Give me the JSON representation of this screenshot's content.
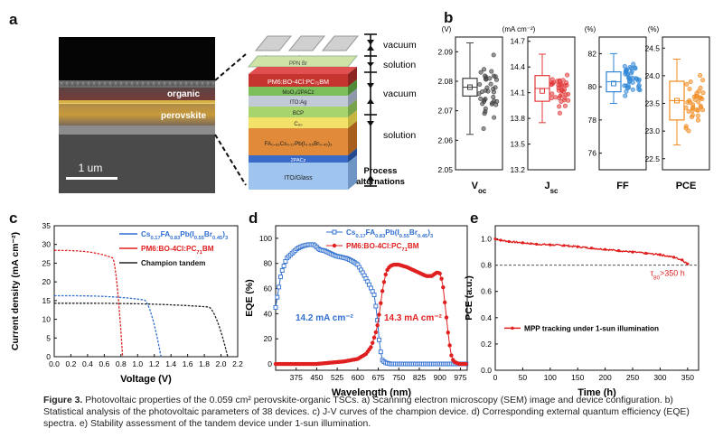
{
  "panels": {
    "a": {
      "letter": "a",
      "sem": {
        "labels": [
          "organic",
          "perovskite"
        ],
        "scale_bar": "1 um"
      },
      "stack": {
        "layers": [
          "Ag",
          "PPN Br",
          "PM6:BO-4Cl:PC₇₁BM",
          "MoO₃/2PACz",
          "ITO:Ag",
          "BCP",
          "C₆₀",
          "FA₀.₈₃Cs₀.₁₇Pb(I₀.₅₅Br₀.₄₅)₃",
          "2PACz",
          "ITO/Glass"
        ],
        "process": [
          "vacuum",
          "solution",
          "vacuum",
          "solution"
        ],
        "process_title": [
          "Process",
          "alternations"
        ]
      }
    },
    "b": {
      "letter": "b",
      "subplots": [
        {
          "label": "Voc",
          "label_main": "V",
          "label_sub": "oc",
          "unit": "(V)",
          "color": "#404040",
          "ticks": [
            "2.09",
            "2.08",
            "2.07",
            "2.06",
            "2.05"
          ],
          "ylim": [
            2.05,
            2.095
          ],
          "box": {
            "q1": 2.075,
            "median": 2.078,
            "q3": 2.081,
            "mean": 2.078,
            "min": 2.062,
            "max": 2.093
          }
        },
        {
          "label": "Jsc",
          "label_main": "J",
          "label_sub": "sc",
          "unit": "(mA cm⁻²)",
          "color": "#e23a3a",
          "ticks": [
            "14.7",
            "14.4",
            "14.1",
            "13.8",
            "13.5",
            "13.2"
          ],
          "ylim": [
            13.2,
            14.75
          ],
          "box": {
            "q1": 14.0,
            "median": 14.15,
            "q3": 14.3,
            "mean": 14.12,
            "min": 13.75,
            "max": 14.55
          }
        },
        {
          "label": "FF",
          "label_main": "FF",
          "label_sub": "",
          "unit": "(%)",
          "color": "#2f86d6",
          "ticks": [
            "82",
            "80",
            "78",
            "76"
          ],
          "ylim": [
            75,
            83
          ],
          "box": {
            "q1": 79.7,
            "median": 80.3,
            "q3": 80.9,
            "mean": 80.2,
            "min": 79.0,
            "max": 82.0
          }
        },
        {
          "label": "PCE",
          "label_main": "PCE",
          "label_sub": "",
          "unit": "(%)",
          "color": "#f18a1d",
          "ticks": [
            "24.5",
            "24.0",
            "23.5",
            "23.0",
            "22.5"
          ],
          "ylim": [
            22.3,
            24.7
          ],
          "box": {
            "q1": 23.2,
            "median": 23.55,
            "q3": 23.9,
            "mean": 23.55,
            "min": 22.75,
            "max": 24.3
          }
        }
      ]
    },
    "c": {
      "letter": "c"
    },
    "d": {
      "letter": "d",
      "annot_blue": "14.2 mA cm⁻²",
      "annot_red": "14.3 mA cm⁻²"
    },
    "e": {
      "letter": "e",
      "annot": "τ₈₀>350 h"
    }
  },
  "chart_data": [
    {
      "type": "line",
      "title": "J-V curves of the champion device",
      "xlabel": "Voltage (V)",
      "ylabel": "Current density (mA cm⁻²)",
      "xlim": [
        0,
        2.2
      ],
      "ylim": [
        0,
        35
      ],
      "xticks": [
        0,
        0.2,
        0.4,
        0.6,
        0.8,
        1.0,
        1.2,
        1.4,
        1.6,
        1.8,
        2.0,
        2.2
      ],
      "xtick_labels": [
        "0.0",
        "0.2",
        "0.4",
        "0.6",
        "0.8",
        "1.0",
        "1.2",
        "1.4",
        "1.6",
        "1.8",
        "2.0",
        "2.2"
      ],
      "yticks": [
        0,
        5,
        10,
        15,
        20,
        25,
        30,
        35
      ],
      "legend": {
        "position": "top-right",
        "entries": [
          {
            "main": "Cs",
            "parts": [
              [
                "Cs",
                ""
              ],
              [
                "0.17",
                ""
              ],
              [
                "FA",
                ""
              ],
              [
                "0.83",
                ""
              ],
              [
                "Pb(I",
                ""
              ],
              [
                "0.55",
                ""
              ],
              [
                "Br",
                ""
              ],
              [
                "0.45",
                ""
              ],
              [
                ")",
                ""
              ],
              [
                "3",
                ""
              ]
            ]
          }
        ]
      },
      "legend_labels": [
        "Cs0.17FA0.83Pb(I0.55Br0.45)3",
        "PM6:BO-4Cl:PC71BM",
        "Champion tandem"
      ],
      "series": [
        {
          "name": "Cs0.17FA0.83Pb(I0.55Br0.45)3",
          "color": "#2f6fd0",
          "jsc": 16.3,
          "voc": 1.28,
          "vk": 1.08,
          "k": 0.055
        },
        {
          "name": "PM6:BO-4Cl:PC71BM",
          "color": "#e02020",
          "jsc": 28.4,
          "voc": 0.82,
          "vk": 0.7,
          "k": 0.03
        },
        {
          "name": "Champion tandem",
          "color": "#222222",
          "jsc": 14.3,
          "voc": 2.08,
          "vk": 1.85,
          "k": 0.05
        }
      ]
    },
    {
      "type": "line",
      "title": "EQE spectra",
      "xlabel": "Wavelength (nm)",
      "ylabel": "EQE (%)",
      "xlim": [
        300,
        1000
      ],
      "ylim": [
        -5,
        110
      ],
      "xticks": [
        375,
        450,
        525,
        600,
        675,
        750,
        825,
        900,
        975
      ],
      "yticks": [
        0,
        20,
        40,
        60,
        80,
        100
      ],
      "legend_labels": [
        "Cs0.17FA0.83Pb(I0.55Br0.45)3",
        "PM6:BO-4Cl:PC71BM"
      ],
      "series": [
        {
          "name": "Cs0.17FA0.83Pb(I0.55Br0.45)3",
          "color": "#2f6fd0",
          "marker": "open-square",
          "x": [
            300,
            320,
            340,
            360,
            380,
            400,
            420,
            440,
            460,
            480,
            500,
            520,
            540,
            560,
            580,
            600,
            620,
            640,
            660,
            670,
            680,
            690,
            700,
            720,
            750,
            800,
            850,
            900,
            950,
            1000
          ],
          "y": [
            45,
            72,
            84,
            88,
            92,
            94,
            95,
            95,
            91,
            90,
            88,
            86,
            85,
            84,
            82,
            79,
            72,
            64,
            55,
            40,
            14,
            3,
            1,
            0,
            0,
            0,
            0,
            0,
            0,
            0
          ]
        },
        {
          "name": "PM6:BO-4Cl:PC71BM",
          "color": "#e02020",
          "marker": "filled-circle",
          "x": [
            300,
            350,
            400,
            450,
            500,
            550,
            600,
            630,
            650,
            670,
            680,
            690,
            700,
            710,
            720,
            730,
            750,
            780,
            800,
            830,
            850,
            870,
            890,
            900,
            910,
            920,
            930,
            940,
            950,
            970,
            1000
          ],
          "y": [
            0,
            0,
            0,
            0,
            1,
            2,
            4,
            8,
            14,
            28,
            42,
            58,
            70,
            76,
            78,
            79,
            79,
            77,
            75,
            72,
            70,
            70,
            73,
            72,
            65,
            45,
            25,
            8,
            2,
            0,
            0
          ]
        }
      ],
      "annotations": [
        "14.2 mA cm⁻²",
        "14.3 mA cm⁻²"
      ]
    },
    {
      "type": "line",
      "title": "Stability of tandem device under 1-sun illumination",
      "xlabel": "Time (h)",
      "ylabel": "PCE (a.u.)",
      "xlim": [
        0,
        370
      ],
      "ylim": [
        0,
        1.1
      ],
      "xticks": [
        0,
        50,
        100,
        150,
        200,
        250,
        300,
        350
      ],
      "yticks": [
        0.0,
        0.2,
        0.4,
        0.6,
        0.8,
        1.0
      ],
      "ytick_labels": [
        "0.0",
        "0.2",
        "0.4",
        "0.6",
        "0.8",
        "1.0"
      ],
      "reference_line": 0.8,
      "legend_labels": [
        "MPP tracking under 1-sun illumination"
      ],
      "annotation": "τ80>350 h",
      "series": [
        {
          "name": "MPP tracking under 1-sun illumination",
          "color": "#e02020",
          "x": [
            0,
            10,
            25,
            50,
            75,
            100,
            125,
            150,
            175,
            200,
            225,
            250,
            275,
            300,
            325,
            340,
            350
          ],
          "y": [
            1.0,
            0.99,
            0.98,
            0.97,
            0.96,
            0.955,
            0.95,
            0.94,
            0.93,
            0.92,
            0.91,
            0.9,
            0.89,
            0.88,
            0.86,
            0.84,
            0.81
          ]
        }
      ]
    }
  ],
  "caption": {
    "prefix": "Figure 3.",
    "text": "Photovoltaic properties of the 0.059 cm² perovskite-organic TSCs. a) Scanning electron microscopy (SEM) image and device configuration. b) Statistical analysis of the photovoltaic parameters of 38 devices. c) J-V curves of the champion device. d) Corresponding external quantum efficiency (EQE) spectra. e) Stability assessment of the tandem device under 1-sun illumination."
  }
}
